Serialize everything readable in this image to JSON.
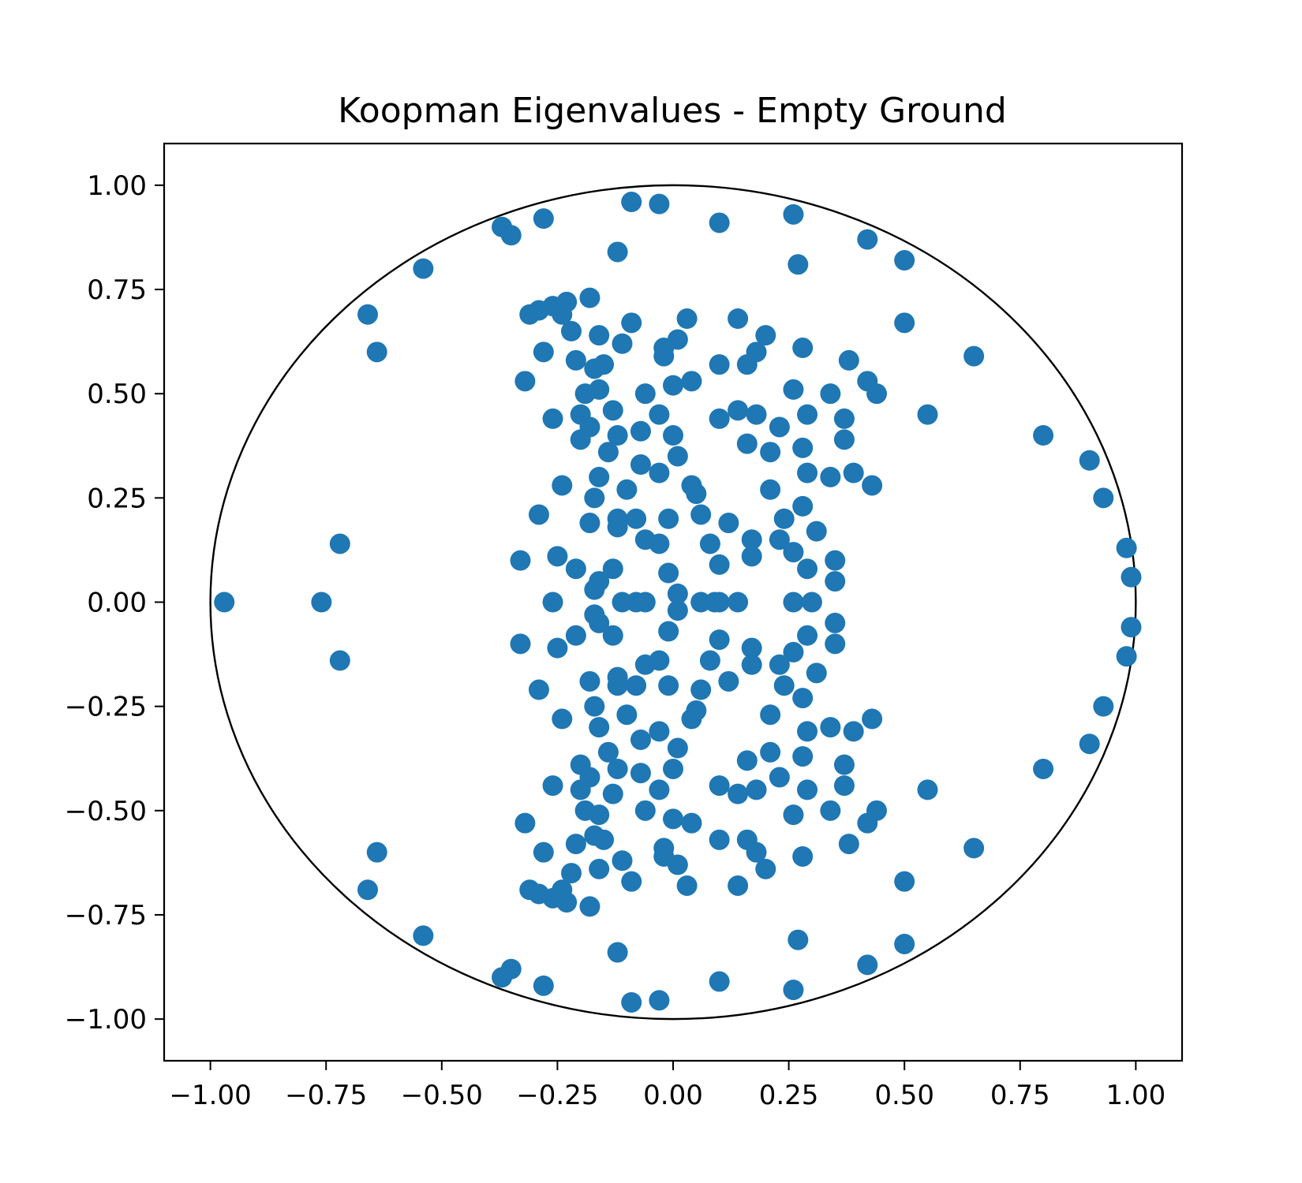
{
  "chart_data": {
    "type": "scatter",
    "title": "Koopman Eigenvalues - Empty Ground",
    "xlabel": "",
    "ylabel": "",
    "xlim": [
      -1.1,
      1.1
    ],
    "ylim": [
      -1.1,
      1.1
    ],
    "xticks": [
      -1.0,
      -0.75,
      -0.5,
      -0.25,
      0.0,
      0.25,
      0.5,
      0.75,
      1.0
    ],
    "yticks": [
      -1.0,
      -0.75,
      -0.5,
      -0.25,
      0.0,
      0.25,
      0.5,
      0.75,
      1.0
    ],
    "xtick_labels": [
      "−1.00",
      "−0.75",
      "−0.50",
      "−0.25",
      "0.00",
      "0.25",
      "0.50",
      "0.75",
      "1.00"
    ],
    "ytick_labels": [
      "−1.00",
      "−0.75",
      "−0.50",
      "−0.25",
      "0.00",
      "0.25",
      "0.50",
      "0.75",
      "1.00"
    ],
    "grid": false,
    "legend": "none",
    "marker_color": "#1f77b4",
    "unit_circle": {
      "center": [
        0,
        0
      ],
      "radius": 1.0,
      "color": "#000000"
    },
    "conjugate_symmetric": true,
    "series": [
      {
        "points_upper_half": [
          [
            -0.97,
            0.0
          ],
          [
            -0.76,
            0.0
          ],
          [
            -0.72,
            0.14
          ],
          [
            -0.66,
            0.69
          ],
          [
            -0.64,
            0.6
          ],
          [
            -0.54,
            0.8
          ],
          [
            -0.37,
            0.9
          ],
          [
            -0.35,
            0.88
          ],
          [
            -0.28,
            0.92
          ],
          [
            -0.09,
            0.96
          ],
          [
            -0.03,
            0.955
          ],
          [
            0.1,
            0.91
          ],
          [
            0.26,
            0.93
          ],
          [
            0.27,
            0.81
          ],
          [
            0.42,
            0.87
          ],
          [
            0.5,
            0.82
          ],
          [
            0.5,
            0.67
          ],
          [
            0.65,
            0.59
          ],
          [
            0.55,
            0.45
          ],
          [
            0.8,
            0.4
          ],
          [
            0.9,
            0.34
          ],
          [
            0.93,
            0.25
          ],
          [
            0.98,
            0.13
          ],
          [
            0.99,
            0.06
          ],
          [
            -0.12,
            0.84
          ],
          [
            -0.31,
            0.69
          ],
          [
            -0.29,
            0.7
          ],
          [
            -0.26,
            0.71
          ],
          [
            -0.24,
            0.69
          ],
          [
            -0.23,
            0.72
          ],
          [
            -0.22,
            0.65
          ],
          [
            -0.18,
            0.73
          ],
          [
            -0.16,
            0.64
          ],
          [
            -0.11,
            0.62
          ],
          [
            -0.09,
            0.67
          ],
          [
            -0.28,
            0.6
          ],
          [
            -0.21,
            0.58
          ],
          [
            -0.17,
            0.56
          ],
          [
            -0.15,
            0.57
          ],
          [
            -0.32,
            0.53
          ],
          [
            -0.19,
            0.5
          ],
          [
            -0.16,
            0.51
          ],
          [
            -0.06,
            0.5
          ],
          [
            -0.26,
            0.44
          ],
          [
            -0.2,
            0.45
          ],
          [
            -0.18,
            0.42
          ],
          [
            -0.13,
            0.46
          ],
          [
            -0.2,
            0.39
          ],
          [
            -0.12,
            0.4
          ],
          [
            -0.14,
            0.36
          ],
          [
            -0.07,
            0.41
          ],
          [
            -0.07,
            0.33
          ],
          [
            -0.16,
            0.3
          ],
          [
            -0.1,
            0.27
          ],
          [
            -0.24,
            0.28
          ],
          [
            -0.17,
            0.25
          ],
          [
            -0.29,
            0.21
          ],
          [
            -0.12,
            0.2
          ],
          [
            -0.08,
            0.2
          ],
          [
            -0.18,
            0.19
          ],
          [
            -0.12,
            0.18
          ],
          [
            -0.06,
            0.15
          ],
          [
            -0.03,
            0.14
          ],
          [
            -0.33,
            0.1
          ],
          [
            -0.25,
            0.11
          ],
          [
            -0.21,
            0.08
          ],
          [
            -0.13,
            0.08
          ],
          [
            -0.16,
            0.05
          ],
          [
            -0.17,
            0.03
          ],
          [
            -0.01,
            0.07
          ],
          [
            -0.26,
            0.0
          ],
          [
            -0.11,
            0.0
          ],
          [
            -0.08,
            0.0
          ],
          [
            -0.06,
            0.0
          ],
          [
            0.01,
            0.02
          ],
          [
            0.06,
            0.0
          ],
          [
            0.09,
            0.0
          ],
          [
            0.1,
            0.0
          ],
          [
            0.14,
            0.0
          ],
          [
            0.26,
            0.0
          ],
          [
            0.3,
            0.0
          ],
          [
            -0.03,
            0.31
          ],
          [
            0.0,
            0.4
          ],
          [
            0.01,
            0.35
          ],
          [
            -0.03,
            0.45
          ],
          [
            -0.02,
            0.59
          ],
          [
            -0.02,
            0.61
          ],
          [
            0.0,
            0.52
          ],
          [
            0.01,
            0.63
          ],
          [
            0.03,
            0.68
          ],
          [
            0.04,
            0.53
          ],
          [
            0.1,
            0.57
          ],
          [
            0.14,
            0.68
          ],
          [
            0.16,
            0.57
          ],
          [
            0.18,
            0.6
          ],
          [
            0.2,
            0.64
          ],
          [
            0.1,
            0.44
          ],
          [
            0.14,
            0.46
          ],
          [
            0.18,
            0.45
          ],
          [
            0.16,
            0.38
          ],
          [
            0.21,
            0.36
          ],
          [
            0.04,
            0.28
          ],
          [
            0.05,
            0.26
          ],
          [
            0.06,
            0.21
          ],
          [
            -0.01,
            0.2
          ],
          [
            0.21,
            0.27
          ],
          [
            0.23,
            0.42
          ],
          [
            0.26,
            0.51
          ],
          [
            0.29,
            0.45
          ],
          [
            0.28,
            0.37
          ],
          [
            0.29,
            0.31
          ],
          [
            0.28,
            0.23
          ],
          [
            0.24,
            0.2
          ],
          [
            0.12,
            0.19
          ],
          [
            0.08,
            0.14
          ],
          [
            0.17,
            0.15
          ],
          [
            0.1,
            0.09
          ],
          [
            0.17,
            0.11
          ],
          [
            0.23,
            0.15
          ],
          [
            0.26,
            0.12
          ],
          [
            0.29,
            0.08
          ],
          [
            0.31,
            0.17
          ],
          [
            0.28,
            0.61
          ],
          [
            0.34,
            0.5
          ],
          [
            0.37,
            0.44
          ],
          [
            0.37,
            0.39
          ],
          [
            0.38,
            0.58
          ],
          [
            0.42,
            0.53
          ],
          [
            0.44,
            0.5
          ],
          [
            0.39,
            0.31
          ],
          [
            0.43,
            0.28
          ],
          [
            0.34,
            0.3
          ],
          [
            0.35,
            0.1
          ],
          [
            0.35,
            0.05
          ]
        ],
        "note": "points below the real axis are the complex conjugates of points_upper_half"
      }
    ]
  }
}
